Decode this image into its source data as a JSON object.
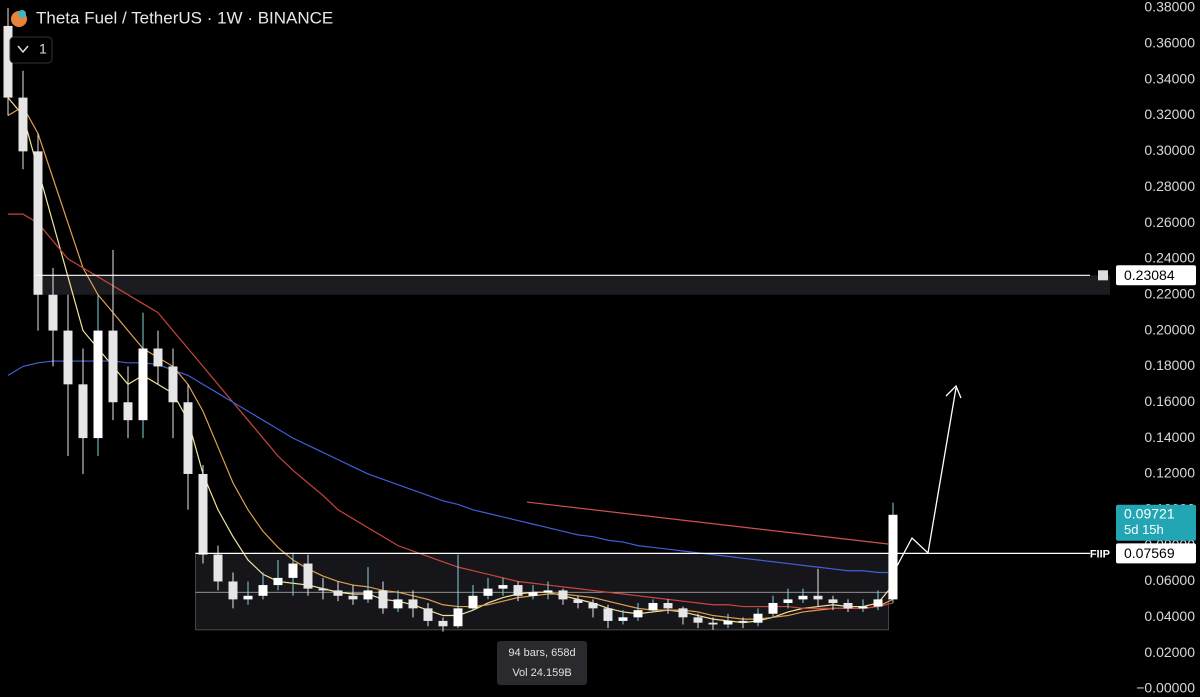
{
  "chart_data": {
    "type": "candlestick",
    "title": "Theta Fuel / TetherUS · 1W · BINANCE",
    "interval_button": "1",
    "ylim": [
      0,
      0.38
    ],
    "yticks": [
      {
        "value": 0.38,
        "label": "0.38000"
      },
      {
        "value": 0.36,
        "label": "0.36000"
      },
      {
        "value": 0.34,
        "label": "0.34000"
      },
      {
        "value": 0.32,
        "label": "0.32000"
      },
      {
        "value": 0.3,
        "label": "0.30000"
      },
      {
        "value": 0.28,
        "label": "0.28000"
      },
      {
        "value": 0.26,
        "label": "0.26000"
      },
      {
        "value": 0.24,
        "label": "0.24000"
      },
      {
        "value": 0.22,
        "label": "0.22000"
      },
      {
        "value": 0.2,
        "label": "0.20000"
      },
      {
        "value": 0.18,
        "label": "0.18000"
      },
      {
        "value": 0.16,
        "label": "0.16000"
      },
      {
        "value": 0.14,
        "label": "0.14000"
      },
      {
        "value": 0.12,
        "label": "0.12000"
      },
      {
        "value": 0.1,
        "label": "0.10000"
      },
      {
        "value": 0.08,
        "label": "0.08000"
      },
      {
        "value": 0.06,
        "label": "0.06000"
      },
      {
        "value": 0.04,
        "label": "0.04000"
      },
      {
        "value": 0.02,
        "label": "0.02000"
      },
      {
        "value": 0,
        "label": "−0.00000"
      }
    ],
    "up_color": "#ffffff",
    "down_color": "#e6e6e6",
    "wick_color": "#7fd6dc",
    "open": [
      0.37,
      0.33,
      0.3,
      0.22,
      0.2,
      0.17,
      0.14,
      0.2,
      0.16,
      0.15,
      0.19,
      0.18,
      0.16,
      0.12,
      0.075,
      0.06,
      0.05,
      0.052,
      0.058,
      0.062,
      0.07,
      0.056,
      0.055,
      0.052,
      0.05,
      0.055,
      0.045,
      0.05,
      0.045,
      0.038,
      0.035,
      0.045,
      0.052,
      0.056,
      0.058,
      0.052,
      0.054,
      0.055,
      0.05,
      0.048,
      0.045,
      0.038,
      0.04,
      0.044,
      0.048,
      0.045,
      0.04,
      0.037,
      0.036,
      0.038,
      0.037,
      0.042,
      0.048,
      0.05,
      0.052,
      0.05,
      0.048,
      0.045,
      0.046,
      0.05
    ],
    "high": [
      0.38,
      0.345,
      0.31,
      0.235,
      0.22,
      0.19,
      0.22,
      0.245,
      0.18,
      0.21,
      0.2,
      0.19,
      0.17,
      0.125,
      0.08,
      0.065,
      0.06,
      0.065,
      0.072,
      0.076,
      0.075,
      0.062,
      0.06,
      0.058,
      0.068,
      0.06,
      0.055,
      0.055,
      0.048,
      0.04,
      0.075,
      0.058,
      0.062,
      0.062,
      0.06,
      0.058,
      0.06,
      0.056,
      0.052,
      0.05,
      0.047,
      0.044,
      0.048,
      0.05,
      0.05,
      0.046,
      0.042,
      0.04,
      0.042,
      0.04,
      0.045,
      0.052,
      0.056,
      0.056,
      0.067,
      0.052,
      0.05,
      0.05,
      0.055,
      0.104
    ],
    "low": [
      0.32,
      0.29,
      0.2,
      0.18,
      0.13,
      0.12,
      0.13,
      0.15,
      0.14,
      0.14,
      0.17,
      0.14,
      0.1,
      0.07,
      0.055,
      0.045,
      0.047,
      0.05,
      0.055,
      0.052,
      0.052,
      0.05,
      0.049,
      0.047,
      0.048,
      0.042,
      0.043,
      0.04,
      0.035,
      0.032,
      0.034,
      0.044,
      0.05,
      0.052,
      0.049,
      0.05,
      0.05,
      0.047,
      0.045,
      0.04,
      0.034,
      0.036,
      0.038,
      0.043,
      0.042,
      0.036,
      0.034,
      0.033,
      0.034,
      0.034,
      0.035,
      0.04,
      0.045,
      0.048,
      0.046,
      0.044,
      0.043,
      0.043,
      0.044,
      0.048
    ],
    "close": [
      0.33,
      0.3,
      0.22,
      0.2,
      0.17,
      0.14,
      0.2,
      0.16,
      0.15,
      0.19,
      0.18,
      0.16,
      0.12,
      0.075,
      0.06,
      0.05,
      0.052,
      0.058,
      0.062,
      0.07,
      0.056,
      0.055,
      0.052,
      0.05,
      0.055,
      0.045,
      0.05,
      0.045,
      0.038,
      0.035,
      0.045,
      0.052,
      0.056,
      0.058,
      0.052,
      0.054,
      0.055,
      0.05,
      0.048,
      0.045,
      0.038,
      0.04,
      0.044,
      0.048,
      0.045,
      0.04,
      0.037,
      0.036,
      0.038,
      0.037,
      0.042,
      0.048,
      0.05,
      0.052,
      0.05,
      0.048,
      0.045,
      0.046,
      0.05,
      0.09721
    ],
    "series": [
      {
        "color": "#f3e19a",
        "values": [
          0.33,
          0.32,
          0.29,
          0.26,
          0.23,
          0.2,
          0.19,
          0.18,
          0.17,
          0.175,
          0.17,
          0.165,
          0.15,
          0.12,
          0.1,
          0.085,
          0.072,
          0.064,
          0.06,
          0.059,
          0.058,
          0.056,
          0.054,
          0.053,
          0.053,
          0.05,
          0.049,
          0.047,
          0.044,
          0.041,
          0.041,
          0.044,
          0.048,
          0.051,
          0.053,
          0.054,
          0.054,
          0.052,
          0.05,
          0.048,
          0.045,
          0.043,
          0.042,
          0.043,
          0.044,
          0.043,
          0.041,
          0.039,
          0.038,
          0.037,
          0.038,
          0.04,
          0.043,
          0.045,
          0.046,
          0.047,
          0.046,
          0.046,
          0.048,
          0.058
        ]
      },
      {
        "color": "#e0a050",
        "values": [
          0.32,
          0.325,
          0.31,
          0.285,
          0.26,
          0.235,
          0.22,
          0.21,
          0.2,
          0.19,
          0.185,
          0.18,
          0.17,
          0.155,
          0.135,
          0.115,
          0.1,
          0.088,
          0.079,
          0.072,
          0.067,
          0.063,
          0.06,
          0.058,
          0.057,
          0.055,
          0.054,
          0.052,
          0.05,
          0.047,
          0.046,
          0.046,
          0.047,
          0.049,
          0.051,
          0.052,
          0.053,
          0.053,
          0.052,
          0.051,
          0.049,
          0.047,
          0.045,
          0.044,
          0.044,
          0.044,
          0.043,
          0.041,
          0.04,
          0.039,
          0.039,
          0.04,
          0.041,
          0.043,
          0.044,
          0.045,
          0.045,
          0.045,
          0.046,
          0.05
        ]
      },
      {
        "color": "#c9453f",
        "values": [
          0.265,
          0.265,
          0.26,
          0.25,
          0.24,
          0.235,
          0.23,
          0.225,
          0.22,
          0.215,
          0.21,
          0.2,
          0.19,
          0.18,
          0.17,
          0.16,
          0.15,
          0.14,
          0.13,
          0.122,
          0.115,
          0.108,
          0.1,
          0.095,
          0.09,
          0.085,
          0.08,
          0.077,
          0.074,
          0.071,
          0.068,
          0.066,
          0.064,
          0.062,
          0.06,
          0.059,
          0.058,
          0.057,
          0.056,
          0.055,
          0.054,
          0.053,
          0.052,
          0.051,
          0.05,
          0.049,
          0.048,
          0.047,
          0.047,
          0.046,
          0.046,
          0.046,
          0.046,
          0.045,
          0.045,
          0.045,
          0.045,
          0.045,
          0.046,
          0.048
        ]
      },
      {
        "color": "#3f5fd6",
        "values": [
          0.175,
          0.18,
          0.182,
          0.183,
          0.183,
          0.183,
          0.183,
          0.183,
          0.182,
          0.182,
          0.181,
          0.178,
          0.175,
          0.17,
          0.165,
          0.16,
          0.155,
          0.15,
          0.145,
          0.14,
          0.136,
          0.132,
          0.128,
          0.124,
          0.12,
          0.117,
          0.114,
          0.111,
          0.108,
          0.105,
          0.103,
          0.1,
          0.098,
          0.096,
          0.094,
          0.092,
          0.09,
          0.088,
          0.086,
          0.085,
          0.083,
          0.082,
          0.08,
          0.079,
          0.078,
          0.077,
          0.076,
          0.075,
          0.074,
          0.073,
          0.072,
          0.071,
          0.07,
          0.069,
          0.068,
          0.067,
          0.066,
          0.066,
          0.065,
          0.065
        ]
      }
    ],
    "ma_segment": {
      "color": "#d0524c",
      "values": [
        0.1043,
        0.0809
      ]
    },
    "zone": [
      0.22,
      0.23084
    ],
    "levels": [
      {
        "value": 0.23084,
        "label": "0.23084"
      },
      {
        "value": 0.07569,
        "label": "0.07569",
        "name": "FIIP"
      }
    ],
    "mid_line": 0.054,
    "last_price": {
      "value": 0.09721,
      "label": "0.09721",
      "countdown": "5d 15h",
      "color": "#22a6b3"
    },
    "measure": {
      "low": 0.033,
      "high": 0.07569,
      "bars_label": "94 bars, 658d",
      "vol_label": "Vol 24.159B"
    }
  }
}
